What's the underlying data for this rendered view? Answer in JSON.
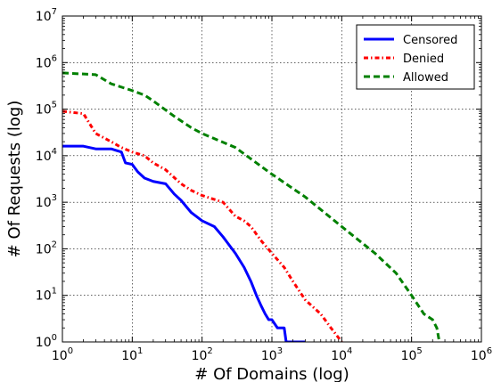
{
  "chart_data": {
    "type": "line",
    "xlabel": "# Of Domains (log)",
    "ylabel": "# Of Requests (log)",
    "x_scale": "log",
    "y_scale": "log",
    "xlim": [
      1,
      1000000
    ],
    "ylim": [
      1,
      10000000
    ],
    "x_ticks": [
      {
        "value": 1,
        "base": "10",
        "exp": "0"
      },
      {
        "value": 10,
        "base": "10",
        "exp": "1"
      },
      {
        "value": 100,
        "base": "10",
        "exp": "2"
      },
      {
        "value": 1000,
        "base": "10",
        "exp": "3"
      },
      {
        "value": 10000,
        "base": "10",
        "exp": "4"
      },
      {
        "value": 100000,
        "base": "10",
        "exp": "5"
      },
      {
        "value": 1000000,
        "base": "10",
        "exp": "6"
      }
    ],
    "y_ticks": [
      {
        "value": 1,
        "base": "10",
        "exp": "0"
      },
      {
        "value": 10,
        "base": "10",
        "exp": "1"
      },
      {
        "value": 100,
        "base": "10",
        "exp": "2"
      },
      {
        "value": 1000,
        "base": "10",
        "exp": "3"
      },
      {
        "value": 10000,
        "base": "10",
        "exp": "4"
      },
      {
        "value": 100000,
        "base": "10",
        "exp": "5"
      },
      {
        "value": 1000000,
        "base": "10",
        "exp": "6"
      },
      {
        "value": 10000000,
        "base": "10",
        "exp": "7"
      }
    ],
    "grid": true,
    "legend_position": "top-right",
    "series": [
      {
        "name": "Censored",
        "color": "#0000ff",
        "style": "solid",
        "points": [
          [
            1,
            16000
          ],
          [
            2,
            16000
          ],
          [
            3,
            14000
          ],
          [
            5,
            14000
          ],
          [
            7,
            12000
          ],
          [
            8,
            7000
          ],
          [
            10,
            6500
          ],
          [
            12,
            4500
          ],
          [
            15,
            3300
          ],
          [
            20,
            2800
          ],
          [
            30,
            2500
          ],
          [
            40,
            1500
          ],
          [
            50,
            1100
          ],
          [
            70,
            600
          ],
          [
            100,
            400
          ],
          [
            150,
            300
          ],
          [
            200,
            180
          ],
          [
            300,
            80
          ],
          [
            400,
            40
          ],
          [
            500,
            20
          ],
          [
            600,
            10
          ],
          [
            700,
            6
          ],
          [
            800,
            4
          ],
          [
            900,
            3
          ],
          [
            1000,
            3
          ],
          [
            1200,
            2
          ],
          [
            1500,
            2
          ],
          [
            1600,
            1
          ],
          [
            3000,
            1
          ]
        ]
      },
      {
        "name": "Denied",
        "color": "#ff0000",
        "style": "dashdot",
        "points": [
          [
            1,
            90000
          ],
          [
            2,
            80000
          ],
          [
            3,
            30000
          ],
          [
            5,
            20000
          ],
          [
            7,
            15000
          ],
          [
            10,
            12000
          ],
          [
            15,
            10000
          ],
          [
            20,
            7000
          ],
          [
            30,
            5000
          ],
          [
            50,
            2500
          ],
          [
            70,
            1800
          ],
          [
            100,
            1400
          ],
          [
            200,
            1000
          ],
          [
            300,
            500
          ],
          [
            400,
            400
          ],
          [
            500,
            300
          ],
          [
            700,
            150
          ],
          [
            1000,
            80
          ],
          [
            1500,
            40
          ],
          [
            2000,
            20
          ],
          [
            3000,
            8
          ],
          [
            5000,
            4
          ],
          [
            7000,
            2
          ],
          [
            10000,
            1
          ]
        ]
      },
      {
        "name": "Allowed",
        "color": "#008000",
        "style": "dashed",
        "points": [
          [
            1,
            600000
          ],
          [
            3,
            550000
          ],
          [
            5,
            350000
          ],
          [
            10,
            250000
          ],
          [
            15,
            200000
          ],
          [
            20,
            150000
          ],
          [
            40,
            70000
          ],
          [
            70,
            40000
          ],
          [
            100,
            30000
          ],
          [
            300,
            15000
          ],
          [
            1000,
            4000
          ],
          [
            3000,
            1300
          ],
          [
            10000,
            300
          ],
          [
            30000,
            80
          ],
          [
            60000,
            30
          ],
          [
            100000,
            10
          ],
          [
            150000,
            4
          ],
          [
            200000,
            3
          ],
          [
            230000,
            2
          ],
          [
            250000,
            1
          ]
        ]
      }
    ]
  }
}
